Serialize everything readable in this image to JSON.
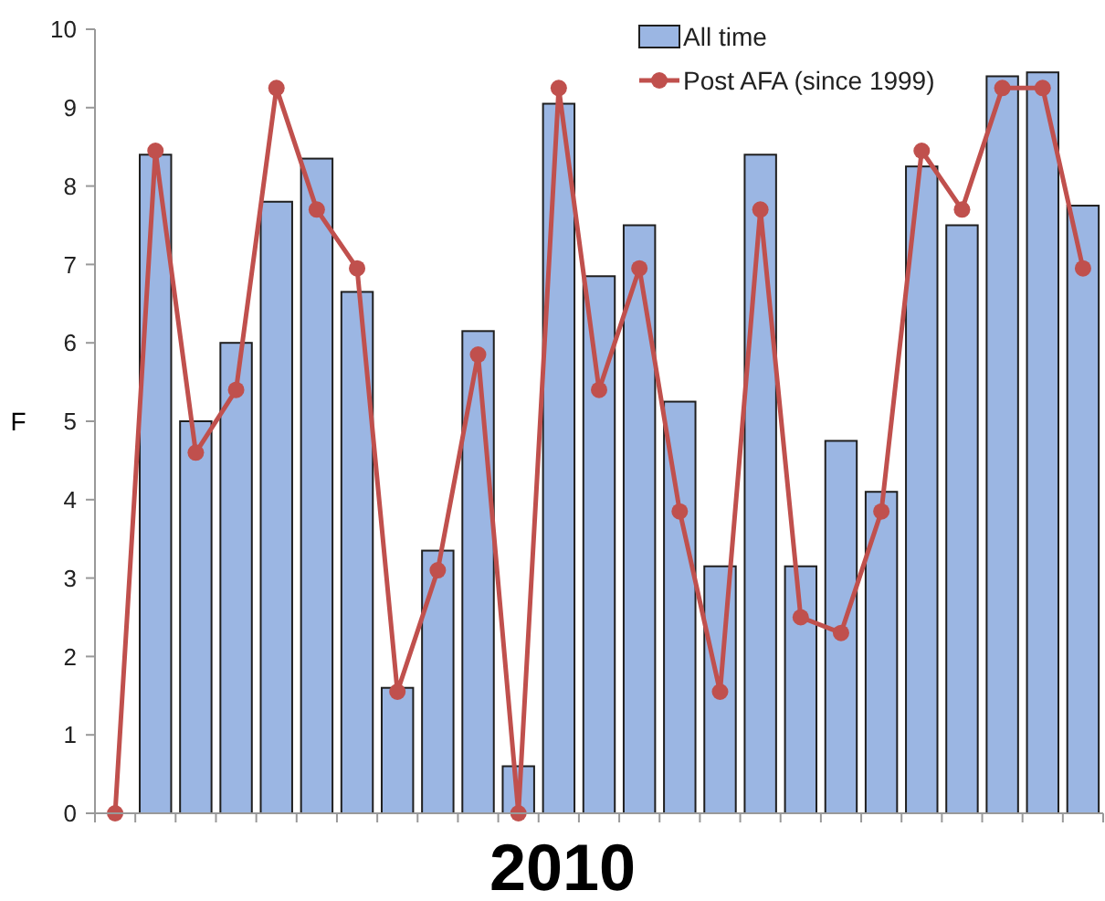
{
  "chart_data": {
    "type": "bar",
    "xlabel": "2010",
    "ylabel": "F",
    "categories": [
      null,
      null,
      null,
      null,
      null,
      null,
      null,
      null,
      null,
      null,
      null,
      null,
      null,
      null,
      null,
      null,
      null,
      null,
      null,
      null,
      null,
      null,
      null,
      null,
      null
    ],
    "series": [
      {
        "name": "All time",
        "color": "#9bb6e3",
        "values": [
          null,
          8.4,
          5.0,
          6.0,
          7.8,
          8.35,
          6.65,
          1.6,
          3.35,
          6.15,
          0.6,
          9.05,
          6.85,
          7.5,
          5.25,
          3.15,
          8.4,
          3.15,
          4.75,
          4.1,
          8.25,
          7.5,
          9.4,
          9.45,
          7.75
        ]
      },
      {
        "name": "Post AFA (since 1999)",
        "type": "line",
        "color": "#c0504d",
        "values": [
          0,
          8.45,
          4.6,
          5.4,
          9.25,
          7.7,
          6.95,
          1.55,
          3.1,
          5.85,
          0,
          9.25,
          5.4,
          6.95,
          3.85,
          1.55,
          7.7,
          2.5,
          2.3,
          3.85,
          8.45,
          7.7,
          9.25,
          9.25,
          6.95
        ]
      }
    ],
    "ylim": [
      0,
      10
    ],
    "yticks": [
      0,
      1,
      2,
      3,
      4,
      5,
      6,
      7,
      8,
      9,
      10
    ],
    "grid": false,
    "legend": "top right",
    "marker": "circle",
    "line_style": "solid"
  }
}
